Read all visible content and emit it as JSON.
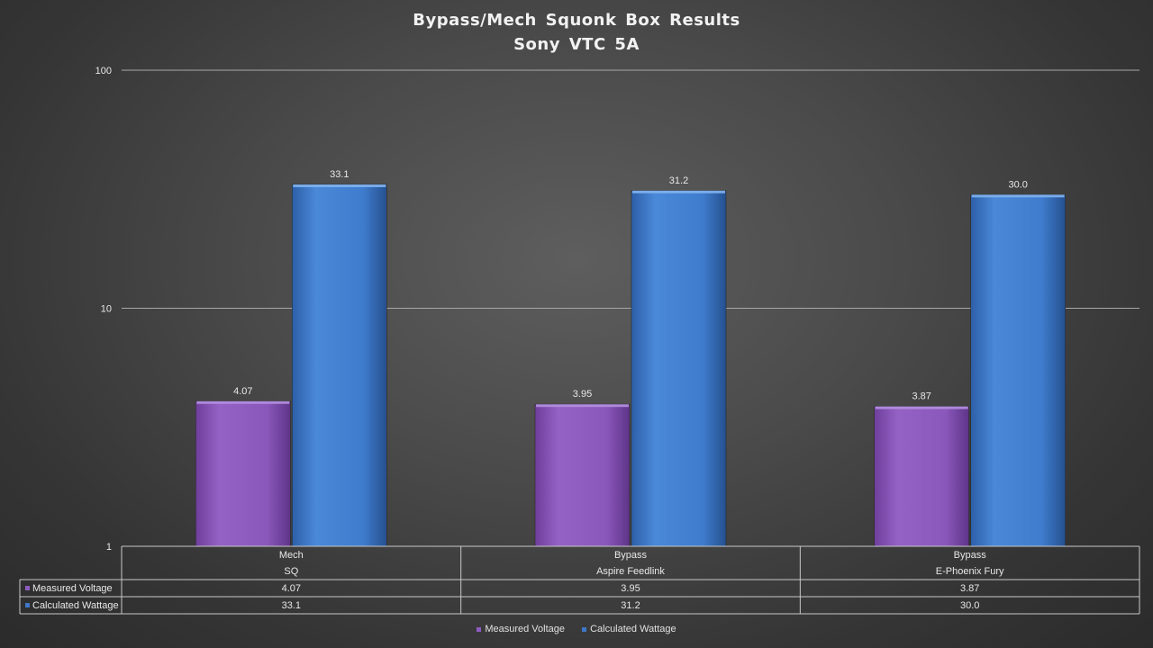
{
  "chart_data": {
    "type": "bar",
    "title": "Bypass/Mech  Squonk  Box Results",
    "subtitle": "Sony  VTC  5A",
    "y_scale": "log",
    "ylim": [
      1,
      100
    ],
    "y_ticks": [
      "1",
      "10",
      "100"
    ],
    "categories": [
      {
        "line1": "Mech",
        "line2": "SQ"
      },
      {
        "line1": "Bypass",
        "line2": "Aspire Feedlink"
      },
      {
        "line1": "Bypass",
        "line2": "E-Phoenix Fury"
      }
    ],
    "series": [
      {
        "name": "Measured Voltage",
        "values": [
          4.07,
          3.95,
          3.87
        ],
        "labels": [
          "4.07",
          "3.95",
          "3.87"
        ],
        "color": "#8e5cc0"
      },
      {
        "name": "Calculated Wattage",
        "values": [
          33.1,
          31.2,
          30.0
        ],
        "labels": [
          "33.1",
          "31.2",
          "30.0"
        ],
        "color": "#3d78c7"
      }
    ],
    "grid": true,
    "legend_position": "bottom",
    "data_table": true
  }
}
